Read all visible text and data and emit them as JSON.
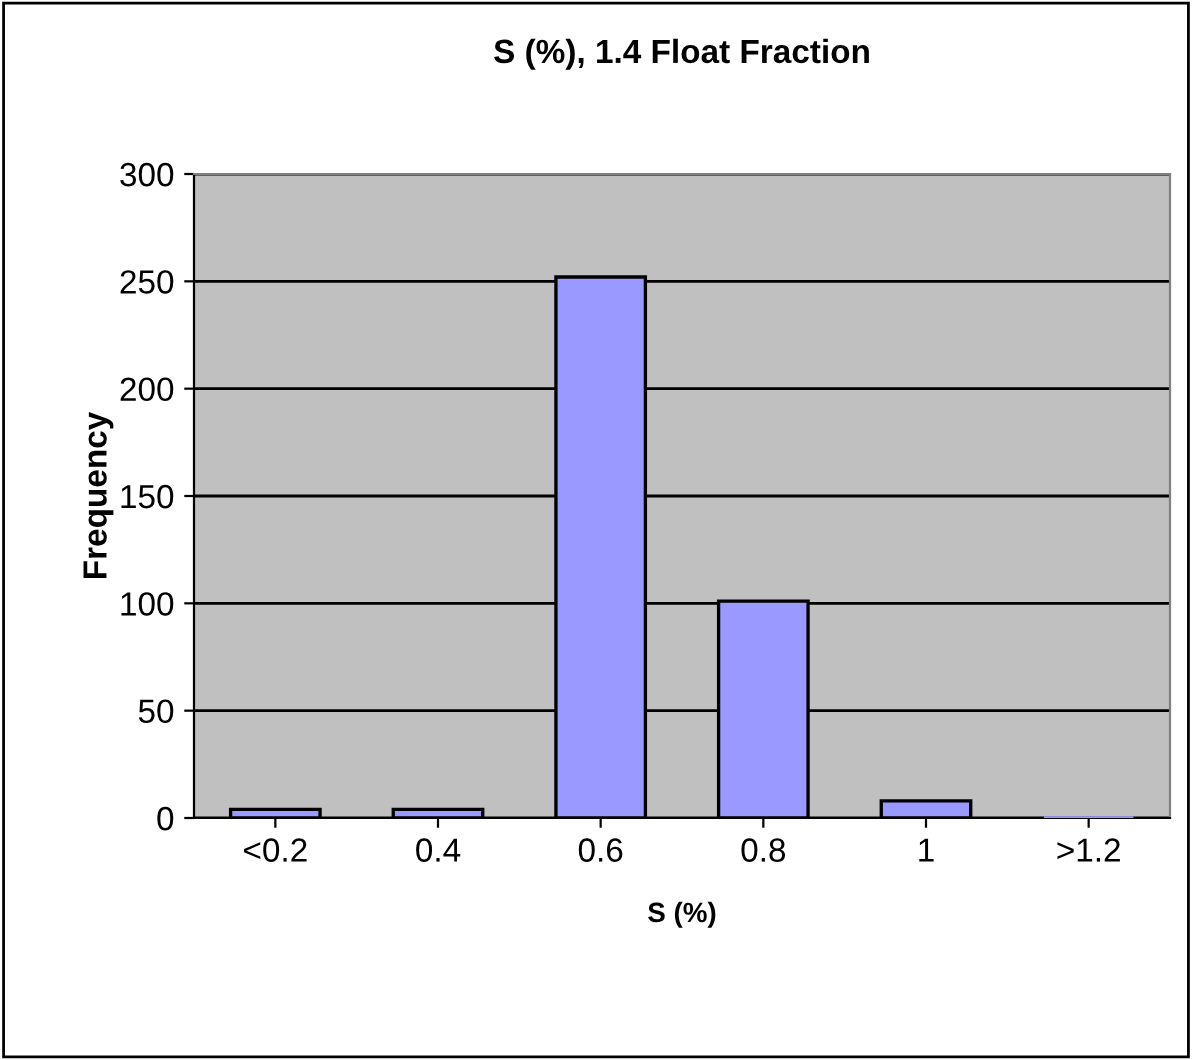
{
  "chart_data": {
    "type": "bar",
    "title": "S (%), 1.4 Float Fraction",
    "xlabel": "S (%)",
    "ylabel": "Frequency",
    "categories": [
      "<0.2",
      "0.4",
      "0.6",
      "0.8",
      "1",
      ">1.2"
    ],
    "values": [
      4,
      4,
      252,
      101,
      8,
      0
    ],
    "color": "#9999ff",
    "ylim": [
      0,
      300
    ],
    "yticks": [
      0,
      50,
      100,
      150,
      200,
      250,
      300
    ],
    "grid": "y",
    "legend": false
  }
}
